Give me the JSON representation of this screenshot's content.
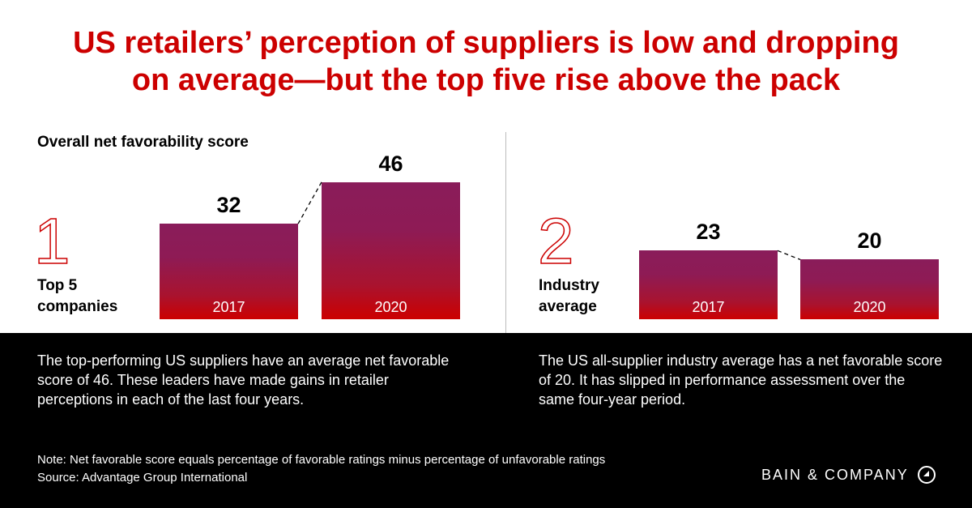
{
  "title_line1": "US retailers’ perception of suppliers is low and dropping",
  "title_line2": "on average—but the top five rise above the pack",
  "chart_data": [
    {
      "type": "bar",
      "title": "Overall net favorability score",
      "group_number": "1",
      "group_label_line1": "Top 5",
      "group_label_line2": "companies",
      "categories": [
        "2017",
        "2020"
      ],
      "values": [
        32,
        46
      ]
    },
    {
      "type": "bar",
      "group_number": "2",
      "group_label_line1": "Industry",
      "group_label_line2": "average",
      "categories": [
        "2017",
        "2020"
      ],
      "values": [
        23,
        20
      ]
    }
  ],
  "descriptions": [
    "The top-performing US suppliers have an average net favorable score of 46. These leaders have made gains in retailer perceptions in each of the last four years.",
    "The US all-supplier industry average has a net favorable score of 20. It has slipped in performance assessment over the same four-year period."
  ],
  "note": "Note: Net favorable score equals percentage of favorable ratings minus percentage of unfavorable ratings",
  "source": "Source: Advantage Group International",
  "logo": "BAIN & COMPANY",
  "colors": {
    "title": "#cc0000",
    "bar_top": "#8a1c5a",
    "bar_bottom": "#cc0000"
  }
}
